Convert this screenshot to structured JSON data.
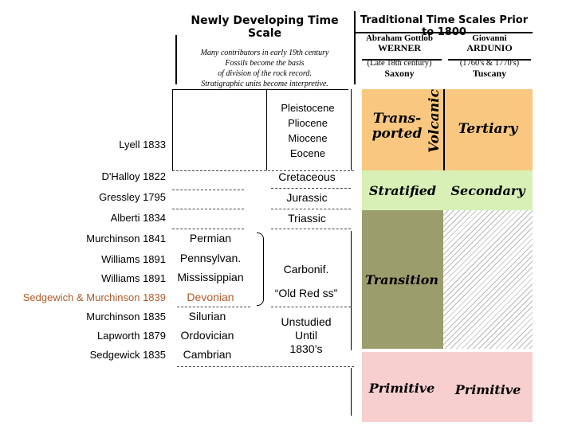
{
  "headers": {
    "newly_developing": "Newly Developing Time Scale",
    "traditional": "Traditional Time Scales Prior to 1800"
  },
  "notes": [
    "Many contributors in early 19th century",
    "Fossils become the basis",
    "of division of the rock record.",
    "Stratigraphic units become interpretive."
  ],
  "werner": {
    "first": "Abraham Gottlob",
    "last": "WERNER",
    "period": "(Late 18th century)",
    "region": "Saxony"
  },
  "ardunio": {
    "first": "Giovanni",
    "last": "ARDUNIO",
    "period": "(1760's & 1770's)",
    "region": "Tuscany"
  },
  "epochs": [
    "Pleistocene",
    "Pliocene",
    "Miocene",
    "Eocene"
  ],
  "authors": {
    "lyell": "Lyell 1833",
    "dhalloy": "D'Halloy 1822",
    "gressley": "Gressley 1795",
    "alberti": "Alberti 1834",
    "murchinson1": "Murchinson 1841",
    "williams1": "Williams 1891",
    "williams2": "Williams 1891",
    "sedgewich": "Sedgewich & Murchinson 1839",
    "murchinson2": "Murchinson 1835",
    "lapworth": "Lapworth 1879",
    "sedgewick": "Sedgewick 1835"
  },
  "systems": {
    "cretaceous": "Cretaceous",
    "jurassic": "Jurassic",
    "triassic": "Triassic",
    "permian": "Permian",
    "pennsylvan": "Pennsylvan.",
    "mississippian": "Mississippian",
    "devonian": "Devonian",
    "silurian": "Silurian",
    "ordovician": "Ordovician",
    "cambrian": "Cambrian",
    "carbonif": "Carbonif.",
    "old_red": "“Old Red ss”",
    "unstudied": [
      "Unstudied",
      "Until",
      "1830’s"
    ]
  },
  "werner_units": {
    "volcanic": "Volcanic",
    "transported": [
      "Trans-",
      "ported"
    ],
    "stratified": "Stratified",
    "transition": "Transition",
    "primitive": "Primitive"
  },
  "ardunio_units": {
    "tertiary": "Tertiary",
    "secondary": "Secondary",
    "primitive": "Primitive"
  },
  "colors": {
    "tertiary": "#f9c77f",
    "secondary": "#d8f0b6",
    "transition": "#9b9d6c",
    "primitive": "#f8cfcf",
    "red_text": "#b05a2a"
  }
}
